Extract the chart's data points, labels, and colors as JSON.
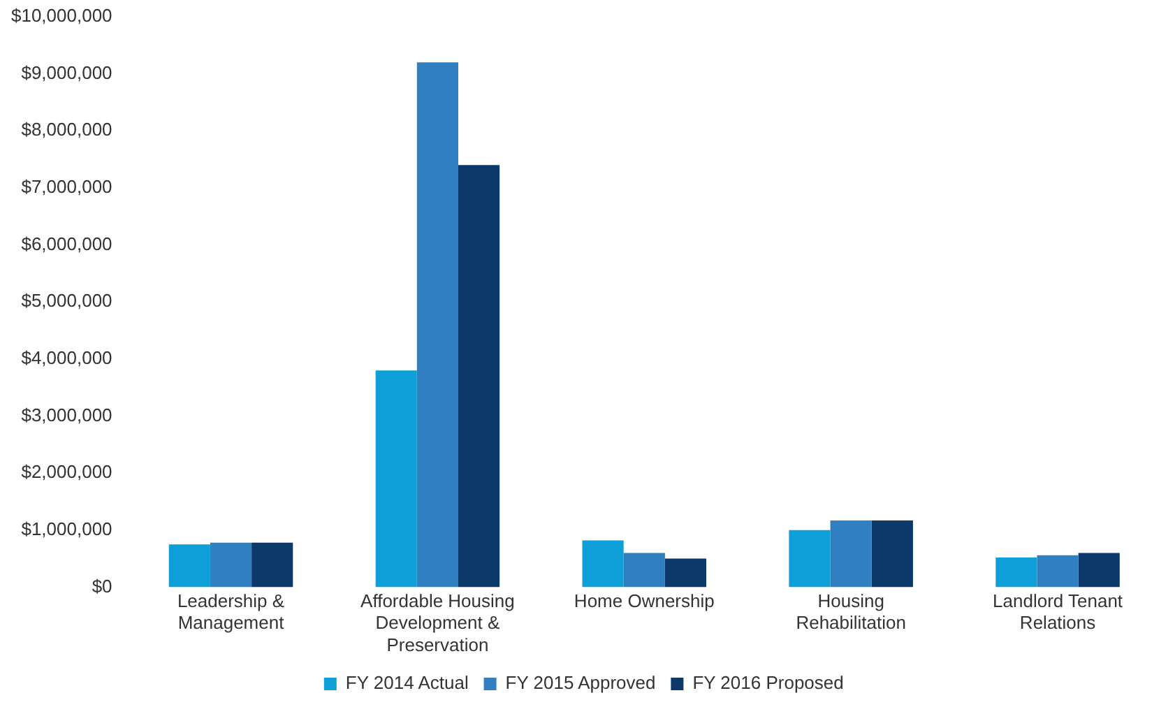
{
  "chart_data": {
    "type": "bar",
    "categories": [
      "Leadership & Management",
      "Affordable Housing Development & Preservation",
      "Home Ownership",
      "Housing Rehabilitation",
      "Landlord Tenant Relations"
    ],
    "series": [
      {
        "name": "FY 2014 Actual",
        "color": "#0e9fd8",
        "values": [
          750000,
          3800000,
          820000,
          1000000,
          520000
        ]
      },
      {
        "name": "FY 2015 Approved",
        "color": "#2f7fc1",
        "values": [
          780000,
          9200000,
          600000,
          1170000,
          560000
        ]
      },
      {
        "name": "FY 2016 Proposed",
        "color": "#0b3a6a",
        "values": [
          780000,
          7400000,
          500000,
          1170000,
          600000
        ]
      }
    ],
    "ylim": [
      0,
      10000000
    ],
    "yticks": [
      {
        "value": 0,
        "label": "$0"
      },
      {
        "value": 1000000,
        "label": "$1,000,000"
      },
      {
        "value": 2000000,
        "label": "$2,000,000"
      },
      {
        "value": 3000000,
        "label": "$3,000,000"
      },
      {
        "value": 4000000,
        "label": "$4,000,000"
      },
      {
        "value": 5000000,
        "label": "$5,000,000"
      },
      {
        "value": 6000000,
        "label": "$6,000,000"
      },
      {
        "value": 7000000,
        "label": "$7,000,000"
      },
      {
        "value": 8000000,
        "label": "$8,000,000"
      },
      {
        "value": 9000000,
        "label": "$9,000,000"
      },
      {
        "value": 10000000,
        "label": "$10,000,000"
      }
    ],
    "grid": false,
    "legend": "bottom"
  }
}
